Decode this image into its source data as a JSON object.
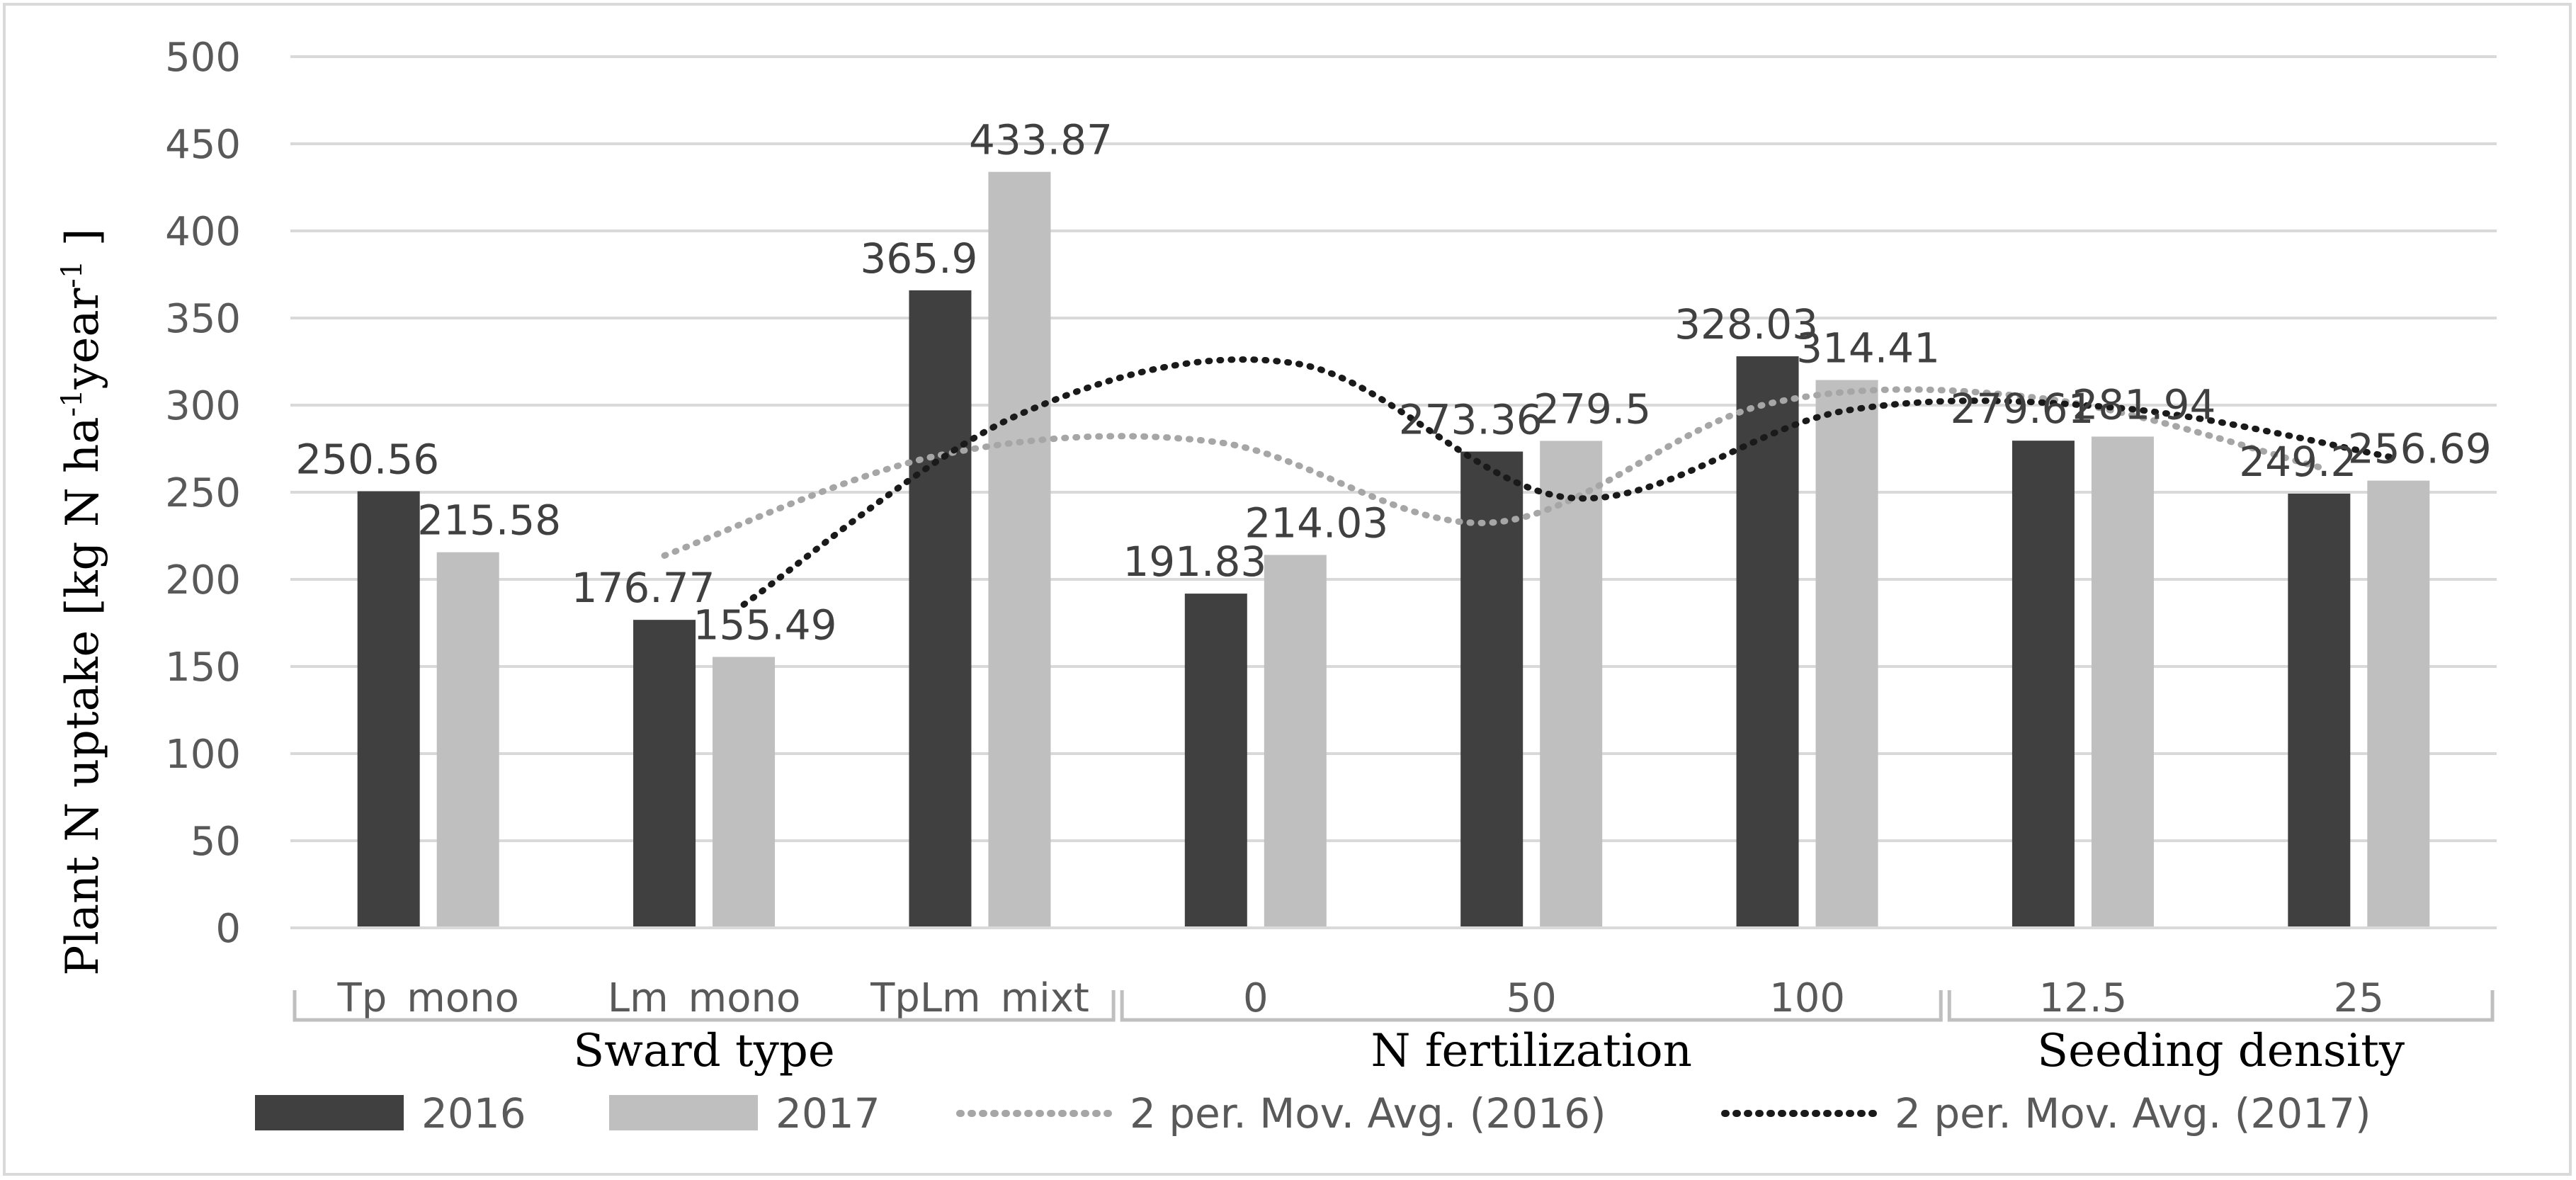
{
  "chart_data": {
    "type": "bar",
    "ylabel_main": "Plant N uptake [kg N ha",
    "ylabel_sup1": "-1",
    "ylabel_mid": "year",
    "ylabel_sup2": "-1",
    "ylabel_end": " ]",
    "ylim": [
      0,
      500
    ],
    "yticks": [
      0,
      50,
      100,
      150,
      200,
      250,
      300,
      350,
      400,
      450,
      500
    ],
    "categories": [
      "Tp_mono",
      "Lm_mono",
      "TpLm_mixt",
      "0",
      "50",
      "100",
      "12.5",
      "25"
    ],
    "groups": [
      {
        "label": "Sward type",
        "span": [
          0,
          2
        ]
      },
      {
        "label": "N fertilization",
        "span": [
          3,
          5
        ]
      },
      {
        "label": "Seeding density",
        "span": [
          6,
          7
        ]
      }
    ],
    "series": [
      {
        "name": "2016",
        "color": "#404040",
        "values": [
          250.56,
          176.77,
          365.9,
          191.83,
          273.36,
          328.03,
          279.61,
          249.2
        ],
        "labels": [
          "250.56",
          "176.77",
          "365.9",
          "191.83",
          "273.36",
          "328.03",
          "279.61",
          "249.2"
        ]
      },
      {
        "name": "2017",
        "color": "#bfbfbf",
        "values": [
          215.58,
          155.49,
          433.87,
          214.03,
          279.5,
          314.41,
          281.94,
          256.69
        ],
        "labels": [
          "215.58",
          "155.49",
          "433.87",
          "214.03",
          "279.5",
          "314.41",
          "281.94",
          "256.69"
        ]
      }
    ],
    "trendlines": [
      {
        "name": "2 per. Mov. Avg. (2016)",
        "color": "#a6a6a6",
        "style": "dotted"
      },
      {
        "name": "2 per. Mov. Avg. (2017)",
        "color": "#1a1a1a",
        "style": "dotted"
      }
    ],
    "grid": true,
    "legend_position": "bottom"
  }
}
